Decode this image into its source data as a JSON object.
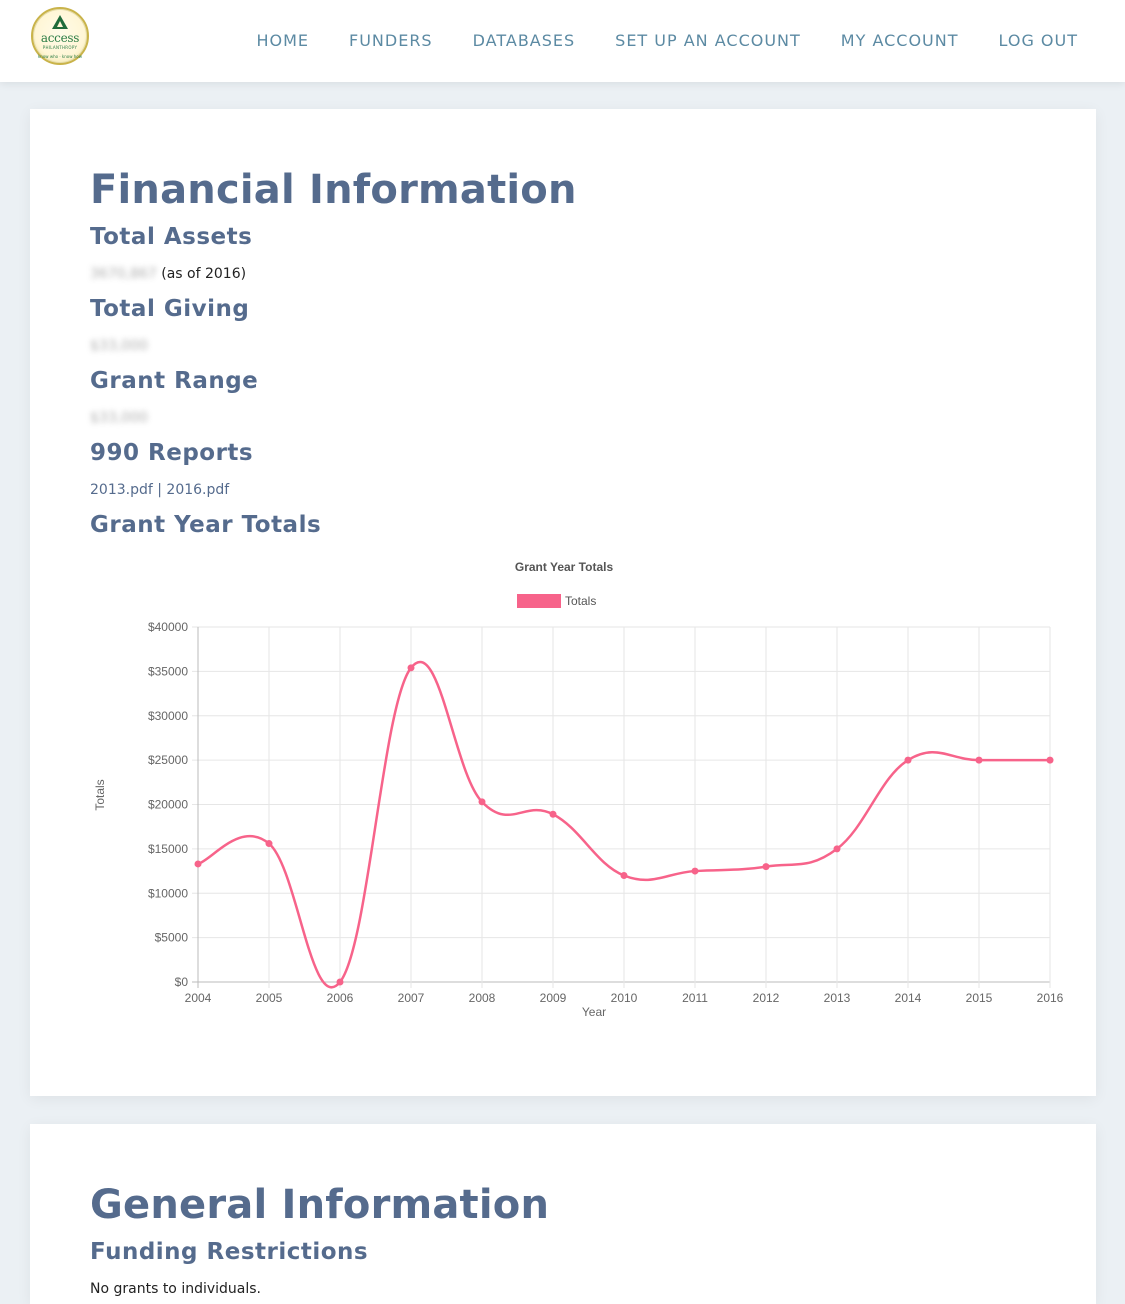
{
  "nav": {
    "items": [
      "HOME",
      "FUNDERS",
      "DATABASES",
      "SET UP AN ACCOUNT",
      "MY ACCOUNT",
      "LOG OUT"
    ]
  },
  "logo": {
    "word": "access",
    "sub": "PHILANTHROPY",
    "ring": "know who · know how"
  },
  "financial": {
    "title": "Financial Information",
    "total_assets_heading": "Total Assets",
    "total_assets_value": "3670,867",
    "total_assets_suffix": "(as of 2016)",
    "total_giving_heading": "Total Giving",
    "total_giving_value": "$33,000",
    "grant_range_heading": "Grant Range",
    "grant_range_value": "$33,000",
    "reports_heading": "990 Reports",
    "report_links": [
      "2013.pdf",
      "2016.pdf"
    ],
    "report_sep": "|",
    "grant_year_heading": "Grant Year Totals"
  },
  "chart_data": {
    "type": "line",
    "title": "Grant Year Totals",
    "xlabel": "Year",
    "ylabel": "Totals",
    "x": [
      2004,
      2005,
      2006,
      2007,
      2008,
      2009,
      2010,
      2011,
      2012,
      2013,
      2014,
      2015,
      2016
    ],
    "series": [
      {
        "name": "Totals",
        "values": [
          13300,
          15600,
          0,
          35400,
          20300,
          18900,
          12000,
          12500,
          13000,
          15000,
          25000,
          25000,
          25000
        ]
      }
    ],
    "ylim": [
      0,
      40000
    ],
    "yticks": [
      "$0",
      "$5000",
      "$10000",
      "$15000",
      "$20000",
      "$25000",
      "$30000",
      "$35000",
      "$40000"
    ],
    "grid": true,
    "legend": "top-center",
    "color": "#f7638a"
  },
  "general": {
    "title": "General Information",
    "restrictions_heading": "Funding Restrictions",
    "restrictions_text": "No grants to individuals."
  }
}
